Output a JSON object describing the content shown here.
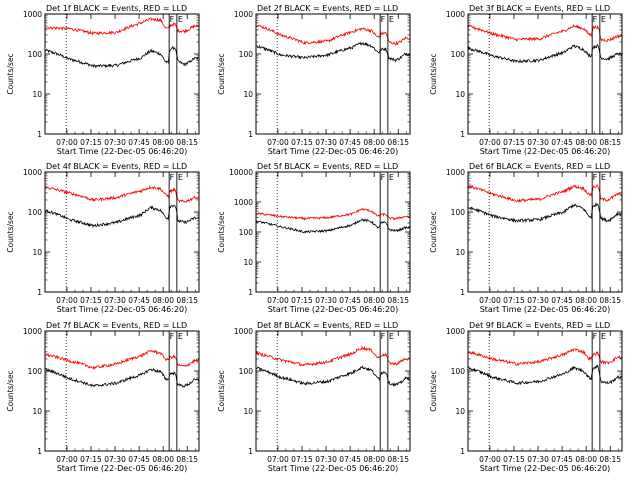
{
  "figure": {
    "background": "#ffffff",
    "axis_color": "#000000",
    "events_color": "#000000",
    "lld_color": "#ff0000"
  },
  "chart_data": [
    {
      "type": "line",
      "title": "Det 1f BLACK = Events, RED = LLD",
      "xlabel": "Start Time (22-Dec-05 06:46:20)",
      "ylabel": "Counts/sec",
      "yscale": "log",
      "ylim": [
        1,
        1000
      ],
      "xticks": [
        "07:00",
        "07:15",
        "07:30",
        "07:45",
        "08:00",
        "08:15"
      ],
      "yticks": [
        "1",
        "10",
        "100",
        "1000"
      ],
      "x_hours": [
        0.0,
        0.25,
        0.5,
        0.75,
        1.0,
        1.1,
        1.2,
        1.25,
        1.28,
        1.3,
        1.35,
        1.38,
        1.45,
        1.5,
        1.55
      ],
      "series": [
        {
          "name": "Events",
          "color": "#000000",
          "values": [
            125,
            75,
            50,
            52,
            80,
            120,
            100,
            65,
            60,
            135,
            145,
            65,
            55,
            62,
            78
          ]
        },
        {
          "name": "LLD",
          "color": "#ff0000",
          "values": [
            460,
            430,
            330,
            350,
            600,
            750,
            700,
            450,
            430,
            520,
            560,
            380,
            370,
            420,
            500
          ]
        }
      ],
      "markers": {
        "dotted_hours": 0.22,
        "box_left_hours": 1.29,
        "box_right_hours": 1.37,
        "labels": [
          "F",
          "E"
        ]
      }
    },
    {
      "type": "line",
      "title": "Det 2f BLACK = Events, RED = LLD",
      "xlabel": "Start Time (22-Dec-05 06:46:20)",
      "ylabel": "Counts/sec",
      "yscale": "log",
      "ylim": [
        1,
        1000
      ],
      "xticks": [
        "07:00",
        "07:15",
        "07:30",
        "07:45",
        "08:00",
        "08:15"
      ],
      "yticks": [
        "1",
        "10",
        "100",
        "1000"
      ],
      "x_hours": [
        0.0,
        0.25,
        0.5,
        0.75,
        1.0,
        1.1,
        1.2,
        1.25,
        1.28,
        1.3,
        1.35,
        1.38,
        1.45,
        1.5,
        1.55
      ],
      "series": [
        {
          "name": "Events",
          "color": "#000000",
          "values": [
            160,
            95,
            80,
            95,
            145,
            190,
            160,
            120,
            110,
            130,
            135,
            80,
            70,
            80,
            100
          ]
        },
        {
          "name": "LLD",
          "color": "#ff0000",
          "values": [
            540,
            300,
            190,
            210,
            360,
            430,
            380,
            280,
            260,
            320,
            340,
            200,
            180,
            200,
            250
          ]
        }
      ],
      "markers": {
        "dotted_hours": 0.22,
        "box_left_hours": 1.29,
        "box_right_hours": 1.37,
        "labels": [
          "F",
          "E"
        ]
      }
    },
    {
      "type": "line",
      "title": "Det 3f BLACK = Events, RED = LLD",
      "xlabel": "Start Time (22-Dec-05 06:46:20)",
      "ylabel": "Counts/sec",
      "yscale": "log",
      "ylim": [
        1,
        1000
      ],
      "xticks": [
        "07:00",
        "07:15",
        "07:30",
        "07:45",
        "08:00",
        "08:15"
      ],
      "yticks": [
        "1",
        "10",
        "100",
        "1000"
      ],
      "x_hours": [
        0.0,
        0.25,
        0.5,
        0.75,
        1.0,
        1.1,
        1.2,
        1.25,
        1.28,
        1.3,
        1.35,
        1.38,
        1.45,
        1.5,
        1.55
      ],
      "series": [
        {
          "name": "Events",
          "color": "#000000",
          "values": [
            140,
            90,
            65,
            70,
            110,
            160,
            130,
            95,
            90,
            150,
            160,
            80,
            75,
            85,
            100
          ]
        },
        {
          "name": "LLD",
          "color": "#ff0000",
          "values": [
            500,
            320,
            230,
            240,
            380,
            500,
            430,
            320,
            300,
            460,
            480,
            230,
            220,
            240,
            280
          ]
        }
      ],
      "markers": {
        "dotted_hours": 0.22,
        "box_left_hours": 1.29,
        "box_right_hours": 1.37,
        "labels": [
          "F",
          "E"
        ]
      }
    },
    {
      "type": "line",
      "title": "Det 4f BLACK = Events, RED = LLD",
      "xlabel": "Start Time (22-Dec-05 06:46:20)",
      "ylabel": "Counts/sec",
      "yscale": "log",
      "ylim": [
        1,
        1000
      ],
      "xticks": [
        "07:00",
        "07:15",
        "07:30",
        "07:45",
        "08:00",
        "08:15"
      ],
      "yticks": [
        "1",
        "10",
        "100",
        "1000"
      ],
      "x_hours": [
        0.0,
        0.25,
        0.5,
        0.75,
        1.0,
        1.1,
        1.2,
        1.25,
        1.28,
        1.3,
        1.35,
        1.38,
        1.45,
        1.5,
        1.55
      ],
      "series": [
        {
          "name": "Events",
          "color": "#000000",
          "values": [
            110,
            65,
            45,
            55,
            85,
            130,
            110,
            75,
            70,
            140,
            150,
            60,
            55,
            60,
            70
          ]
        },
        {
          "name": "LLD",
          "color": "#ff0000",
          "values": [
            420,
            300,
            200,
            230,
            340,
            420,
            380,
            270,
            250,
            330,
            360,
            190,
            180,
            200,
            230
          ]
        }
      ],
      "markers": {
        "dotted_hours": 0.22,
        "box_left_hours": 1.29,
        "box_right_hours": 1.37,
        "labels": [
          "F",
          "E"
        ]
      }
    },
    {
      "type": "line",
      "title": "Det 5f BLACK = Events, RED = LLD",
      "xlabel": "Start Time (22-Dec-05 06:46:20)",
      "ylabel": "Counts/sec",
      "yscale": "log",
      "ylim": [
        1,
        10000
      ],
      "xticks": [
        "07:00",
        "07:15",
        "07:30",
        "07:45",
        "08:00",
        "08:15"
      ],
      "yticks": [
        "1",
        "10",
        "100",
        "1000",
        "10000"
      ],
      "x_hours": [
        0.0,
        0.25,
        0.5,
        0.75,
        1.0,
        1.1,
        1.2,
        1.25,
        1.28,
        1.3,
        1.35,
        1.38,
        1.45,
        1.5,
        1.55
      ],
      "series": [
        {
          "name": "Events",
          "color": "#000000",
          "values": [
            230,
            150,
            100,
            110,
            170,
            260,
            220,
            150,
            140,
            200,
            210,
            120,
            110,
            120,
            140
          ]
        },
        {
          "name": "LLD",
          "color": "#ff0000",
          "values": [
            420,
            330,
            280,
            300,
            400,
            580,
            500,
            360,
            340,
            380,
            390,
            290,
            280,
            300,
            330
          ]
        }
      ],
      "markers": {
        "dotted_hours": 0.22,
        "box_left_hours": 1.29,
        "box_right_hours": 1.37,
        "labels": [
          "F",
          "E"
        ]
      }
    },
    {
      "type": "line",
      "title": "Det 6f BLACK = Events, RED = LLD",
      "xlabel": "Start Time (22-Dec-05 06:46:20)",
      "ylabel": "Counts/sec",
      "yscale": "log",
      "ylim": [
        1,
        1000
      ],
      "xticks": [
        "07:00",
        "07:15",
        "07:30",
        "07:45",
        "08:00",
        "08:15"
      ],
      "yticks": [
        "1",
        "10",
        "100",
        "1000"
      ],
      "x_hours": [
        0.0,
        0.25,
        0.5,
        0.75,
        1.0,
        1.1,
        1.2,
        1.25,
        1.28,
        1.3,
        1.35,
        1.38,
        1.45,
        1.5,
        1.55
      ],
      "series": [
        {
          "name": "Events",
          "color": "#000000",
          "values": [
            130,
            80,
            60,
            65,
            100,
            150,
            120,
            80,
            75,
            140,
            160,
            70,
            60,
            70,
            90
          ]
        },
        {
          "name": "LLD",
          "color": "#ff0000",
          "values": [
            450,
            280,
            190,
            210,
            330,
            440,
            390,
            280,
            270,
            420,
            450,
            210,
            200,
            230,
            280
          ]
        }
      ],
      "markers": {
        "dotted_hours": 0.22,
        "box_left_hours": 1.29,
        "box_right_hours": 1.37,
        "labels": [
          "F",
          "E"
        ]
      }
    },
    {
      "type": "line",
      "title": "Det 7f BLACK = Events, RED = LLD",
      "xlabel": "Start Time (22-Dec-05 06:46:20)",
      "ylabel": "Counts/sec",
      "yscale": "log",
      "ylim": [
        1,
        1000
      ],
      "xticks": [
        "07:00",
        "07:15",
        "07:30",
        "07:45",
        "08:00",
        "08:15"
      ],
      "yticks": [
        "1",
        "10",
        "100",
        "1000"
      ],
      "x_hours": [
        0.0,
        0.25,
        0.5,
        0.75,
        1.0,
        1.1,
        1.2,
        1.25,
        1.28,
        1.3,
        1.35,
        1.38,
        1.45,
        1.5,
        1.55
      ],
      "series": [
        {
          "name": "Events",
          "color": "#000000",
          "values": [
            110,
            65,
            42,
            50,
            80,
            110,
            95,
            65,
            60,
            85,
            90,
            45,
            42,
            48,
            60
          ]
        },
        {
          "name": "LLD",
          "color": "#ff0000",
          "values": [
            260,
            180,
            120,
            150,
            240,
            320,
            280,
            200,
            190,
            220,
            230,
            140,
            130,
            150,
            180
          ]
        }
      ],
      "markers": {
        "dotted_hours": 0.22,
        "box_left_hours": 1.29,
        "box_right_hours": 1.37,
        "labels": [
          "F",
          "E"
        ]
      }
    },
    {
      "type": "line",
      "title": "Det 8f BLACK = Events, RED = LLD",
      "xlabel": "Start Time (22-Dec-05 06:46:20)",
      "ylabel": "Counts/sec",
      "yscale": "log",
      "ylim": [
        1,
        1000
      ],
      "xticks": [
        "07:00",
        "07:15",
        "07:30",
        "07:45",
        "08:00",
        "08:15"
      ],
      "yticks": [
        "1",
        "10",
        "100",
        "1000"
      ],
      "x_hours": [
        0.0,
        0.25,
        0.5,
        0.75,
        1.0,
        1.1,
        1.2,
        1.25,
        1.28,
        1.3,
        1.35,
        1.38,
        1.45,
        1.5,
        1.55
      ],
      "series": [
        {
          "name": "Events",
          "color": "#000000",
          "values": [
            120,
            70,
            48,
            55,
            90,
            125,
            105,
            70,
            65,
            90,
            95,
            50,
            45,
            50,
            65
          ]
        },
        {
          "name": "LLD",
          "color": "#ff0000",
          "values": [
            280,
            190,
            140,
            170,
            270,
            380,
            330,
            230,
            210,
            250,
            260,
            160,
            150,
            170,
            200
          ]
        }
      ],
      "markers": {
        "dotted_hours": 0.22,
        "box_left_hours": 1.29,
        "box_right_hours": 1.37,
        "labels": [
          "F",
          "E"
        ]
      }
    },
    {
      "type": "line",
      "title": "Det 9f BLACK = Events, RED = LLD",
      "xlabel": "Start Time (22-Dec-05 06:46:20)",
      "ylabel": "Counts/sec",
      "yscale": "log",
      "ylim": [
        1,
        1000
      ],
      "xticks": [
        "07:00",
        "07:15",
        "07:30",
        "07:45",
        "08:00",
        "08:15"
      ],
      "yticks": [
        "1",
        "10",
        "100",
        "1000"
      ],
      "x_hours": [
        0.0,
        0.25,
        0.5,
        0.75,
        1.0,
        1.1,
        1.2,
        1.25,
        1.28,
        1.3,
        1.35,
        1.38,
        1.45,
        1.5,
        1.55
      ],
      "series": [
        {
          "name": "Events",
          "color": "#000000",
          "values": [
            120,
            70,
            50,
            55,
            85,
            120,
            100,
            70,
            65,
            120,
            130,
            55,
            50,
            55,
            70
          ]
        },
        {
          "name": "LLD",
          "color": "#ff0000",
          "values": [
            300,
            200,
            150,
            170,
            260,
            350,
            300,
            210,
            200,
            260,
            280,
            170,
            160,
            180,
            220
          ]
        }
      ],
      "markers": {
        "dotted_hours": 0.22,
        "box_left_hours": 1.29,
        "box_right_hours": 1.37,
        "labels": [
          "F",
          "E"
        ]
      }
    }
  ]
}
